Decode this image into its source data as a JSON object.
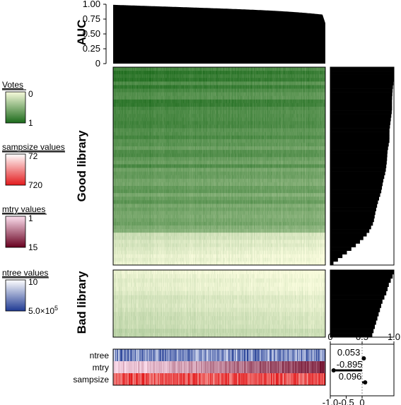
{
  "chart_data": {
    "type": "heatmap",
    "n_models": 300,
    "auc_panel": {
      "ylabel": "AUC",
      "ylim": [
        0,
        1
      ],
      "yticks": [
        "0",
        "0.25",
        "0.50",
        "0.75",
        "1.00"
      ],
      "auc_sorted_start": 0.99,
      "auc_sorted_end": 0.68
    },
    "row_groups": [
      {
        "name": "Good library",
        "rows": 55
      },
      {
        "name": "Bad library",
        "rows": 16
      }
    ],
    "row_bar_panel": {
      "xlim": [
        0,
        1
      ],
      "xticks": [
        "0",
        "0.5",
        "1.0"
      ],
      "good_bar_profile": [
        1.0,
        1.0,
        0.98,
        0.97,
        0.97,
        0.95,
        0.93,
        0.93,
        0.9,
        0.89,
        0.87,
        0.83,
        0.8,
        0.75,
        0.71,
        0.68,
        0.6,
        0.45,
        0.25,
        0.05
      ],
      "bad_bar_profile": [
        1.0,
        0.98,
        0.95,
        0.92,
        0.9,
        0.88,
        0.85,
        0.82,
        0.8,
        0.78,
        0.76,
        0.74,
        0.72,
        0.7,
        0.68,
        0.66
      ]
    },
    "legends": [
      {
        "title": "Votes",
        "min_label": "0",
        "max_label": "1",
        "low_color": "#f8fbdc",
        "high_color": "#1b6a1b"
      },
      {
        "title": "sampsize values",
        "min_label": "72",
        "max_label": "720",
        "low_color": "#ffffff",
        "high_color": "#e31a1c"
      },
      {
        "title": "mtry values",
        "min_label": "1",
        "max_label": "15",
        "low_color": "#fde0ef",
        "high_color": "#67001f"
      },
      {
        "title": "ntree values",
        "min_label": "10",
        "max_label": "5.0×10",
        "max_exponent": "5",
        "low_color": "#ffffff",
        "high_color": "#1f3a93"
      }
    ],
    "param_rows": [
      {
        "name": "ntree",
        "correlation": 0.053,
        "label": "0.053",
        "low": "#f0f4ff",
        "high": "#1f3a93"
      },
      {
        "name": "mtry",
        "correlation": -0.895,
        "label": "-0.895",
        "low": "#fde0ef",
        "high": "#67001f"
      },
      {
        "name": "sampsize",
        "correlation": 0.096,
        "label": "0.096",
        "low": "#fff5f0",
        "high": "#e31a1c"
      }
    ],
    "correlation_panel": {
      "xlim": [
        -1,
        1
      ],
      "xticks": [
        "-1.0",
        "-0.5",
        "0"
      ]
    }
  }
}
